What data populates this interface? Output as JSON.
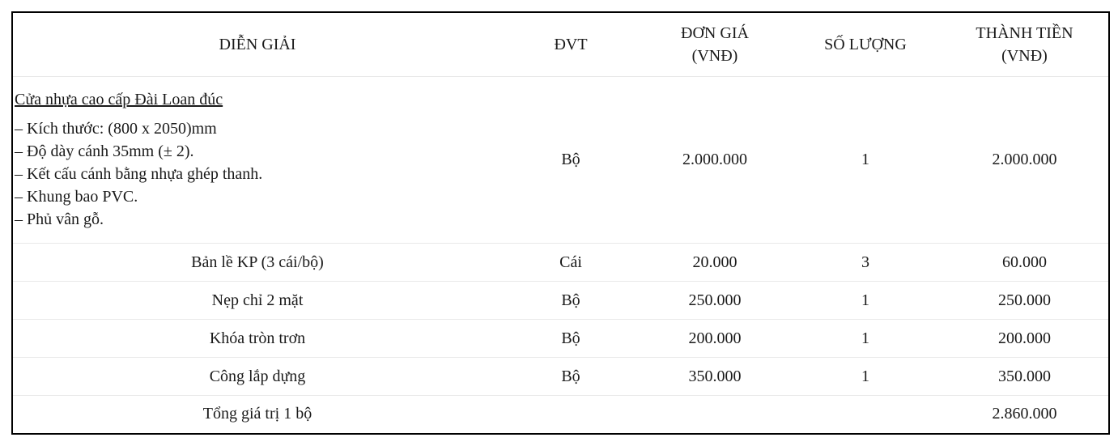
{
  "headers": {
    "description": "DIỄN GIẢI",
    "unit": "ĐVT",
    "unit_price": "ĐƠN GIÁ\n(VNĐ)",
    "quantity": "SỐ LƯỢNG",
    "amount": "THÀNH TIỀN\n(VNĐ)"
  },
  "main_item": {
    "title": "Cửa nhựa cao cấp Đài Loan đúc",
    "specs": [
      "– Kích thước: (800 x 2050)mm",
      "– Độ dày cánh 35mm (± 2).",
      "– Kết cấu cánh bằng nhựa ghép thanh.",
      "– Khung bao PVC.",
      "– Phủ vân gỗ."
    ],
    "unit": "Bộ",
    "unit_price": "2.000.000",
    "quantity": "1",
    "amount": "2.000.000"
  },
  "items": [
    {
      "description": "Bản lề KP (3 cái/bộ)",
      "unit": "Cái",
      "unit_price": "20.000",
      "quantity": "3",
      "amount": "60.000"
    },
    {
      "description": "Nẹp chỉ 2 mặt",
      "unit": "Bộ",
      "unit_price": "250.000",
      "quantity": "1",
      "amount": "250.000"
    },
    {
      "description": "Khóa tròn trơn",
      "unit": "Bộ",
      "unit_price": "200.000",
      "quantity": "1",
      "amount": "200.000"
    },
    {
      "description": "Công lắp dựng",
      "unit": "Bộ",
      "unit_price": "350.000",
      "quantity": "1",
      "amount": "350.000"
    }
  ],
  "total": {
    "label": "Tổng giá trị 1 bộ",
    "amount": "2.860.000"
  }
}
